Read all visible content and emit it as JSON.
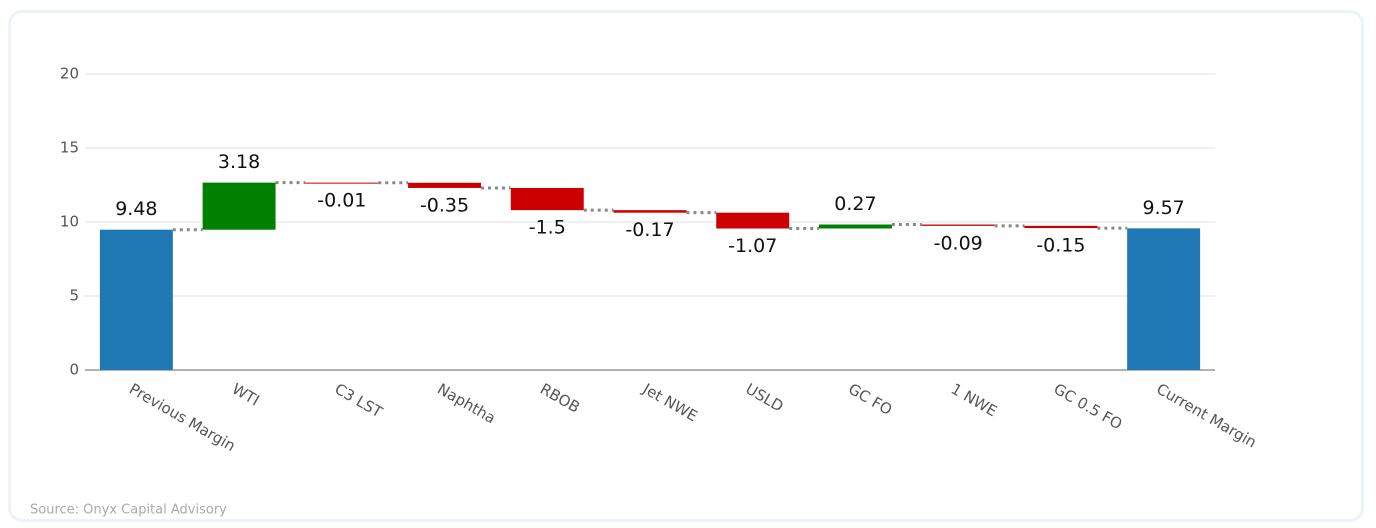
{
  "chart_data": {
    "type": "waterfall",
    "source": "Source: Onyx Capital Advisory",
    "categories": [
      "Previous Margin",
      "WTI",
      "C3 LST",
      "Naphtha",
      "RBOB",
      "Jet NWE",
      "USLD",
      "GC FO",
      "1 NWE",
      "GC 0.5 FO",
      "Current Margin"
    ],
    "values": [
      9.48,
      3.18,
      -0.01,
      -0.35,
      -1.5,
      -0.17,
      -1.07,
      0.27,
      -0.09,
      -0.15,
      9.57
    ],
    "measure": [
      "total",
      "relative",
      "relative",
      "relative",
      "relative",
      "relative",
      "relative",
      "relative",
      "relative",
      "relative",
      "total"
    ],
    "colors": {
      "total": "#1f77b4",
      "increase": "#008000",
      "decrease": "#cc0000",
      "connector": "#888888"
    },
    "ylim": [
      0,
      20
    ],
    "yticks": [
      0,
      5,
      10,
      15,
      20
    ],
    "grid": true
  }
}
